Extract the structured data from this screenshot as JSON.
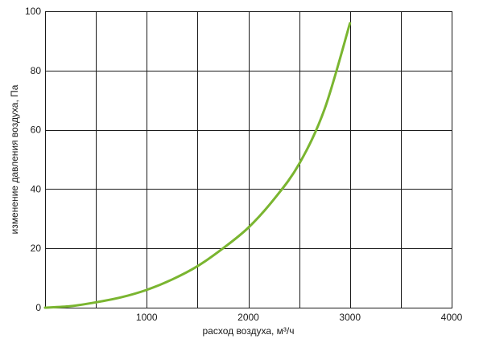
{
  "chart_data": {
    "type": "line",
    "title": "",
    "xlabel": "расход воздуха, м³/ч",
    "ylabel": "изменение давления воздуха, Па",
    "xlim": [
      0,
      4000
    ],
    "ylim": [
      0,
      100
    ],
    "x_ticks": [
      1000,
      2000,
      3000,
      4000
    ],
    "y_ticks": [
      0,
      20,
      40,
      60,
      80,
      100
    ],
    "x_grid_step": 500,
    "y_grid_step": 20,
    "grid": true,
    "legend": "none",
    "series": [
      {
        "color": "#7ab530",
        "x": [
          0,
          250,
          500,
          750,
          1000,
          1250,
          1500,
          1750,
          2000,
          2250,
          2500,
          2750,
          3000
        ],
        "y": [
          0,
          0.5,
          1.8,
          3.5,
          6.0,
          9.5,
          14.0,
          20.0,
          27.0,
          36.5,
          48.5,
          67.0,
          96.0
        ]
      }
    ]
  }
}
